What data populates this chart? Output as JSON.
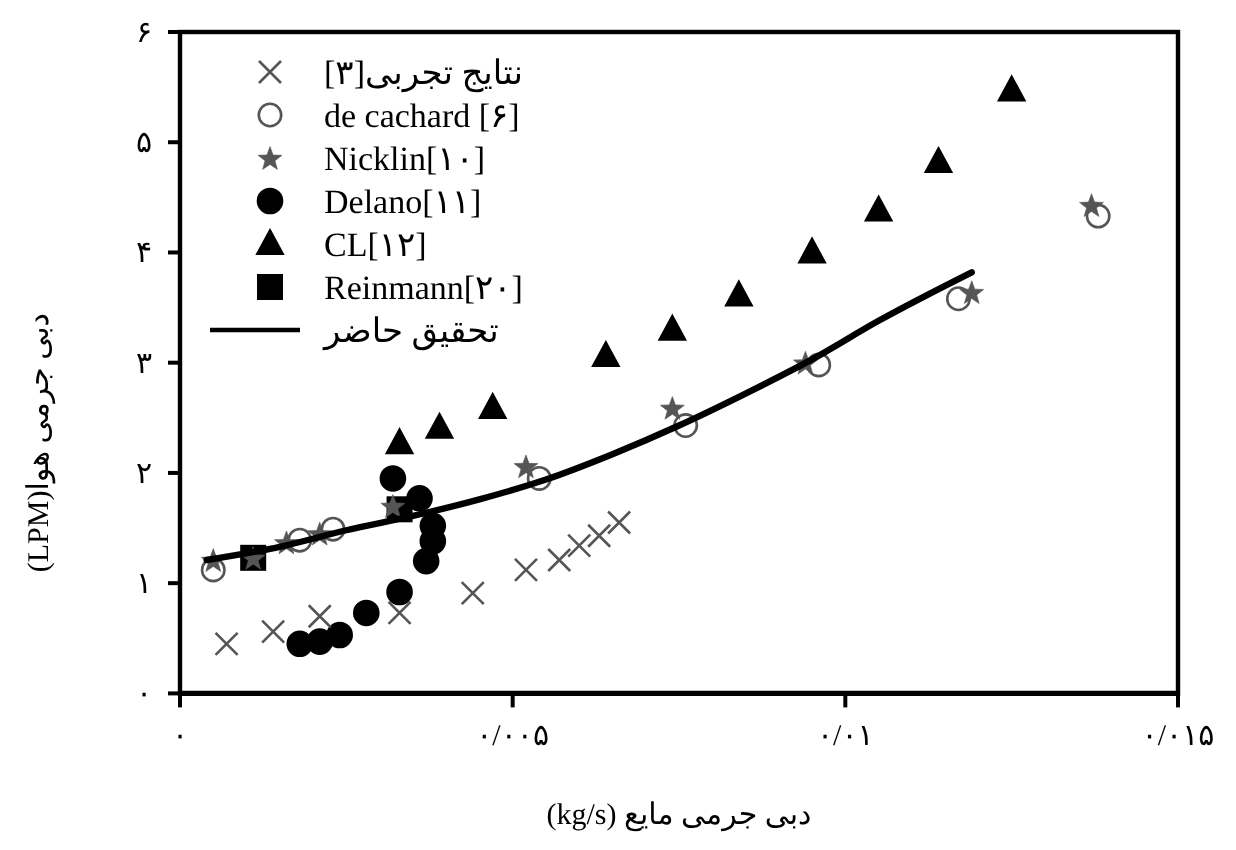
{
  "chart_data": {
    "type": "scatter",
    "xlabel": "دبی جرمی مایع (kg/s)",
    "ylabel": "دبی جرمی هوا(LPM)",
    "xlim": [
      0,
      0.015
    ],
    "xticks": [
      {
        "value": 0,
        "label": "۰"
      },
      {
        "value": 0.005,
        "label": "۰/۰۰۵"
      },
      {
        "value": 0.01,
        "label": "۰/۰۱"
      },
      {
        "value": 0.015,
        "label": "۰/۰۱۵"
      }
    ],
    "ylim": [
      0,
      6
    ],
    "yticks": [
      {
        "value": 0,
        "label": "۰"
      },
      {
        "value": 1,
        "label": "۱"
      },
      {
        "value": 2,
        "label": "۲"
      },
      {
        "value": 3,
        "label": "۳"
      },
      {
        "value": 4,
        "label": "۴"
      },
      {
        "value": 5,
        "label": "۵"
      },
      {
        "value": 6,
        "label": "۶"
      }
    ],
    "legend": "top left",
    "series": [
      {
        "name": "نتایج تجربی[۳]",
        "marker": "cross",
        "color": "#555555",
        "x": [
          0.0007,
          0.0014,
          0.0021,
          0.0033,
          0.0044,
          0.0052,
          0.0057,
          0.006,
          0.0063,
          0.0066
        ],
        "values": [
          0.45,
          0.56,
          0.7,
          0.73,
          0.91,
          1.12,
          1.21,
          1.34,
          1.43,
          1.55
        ]
      },
      {
        "name": "de cachard [۶]",
        "marker": "circle",
        "color": "#555555",
        "x": [
          0.0005,
          0.0018,
          0.0023,
          0.0054,
          0.0076,
          0.0096,
          0.0117,
          0.0138
        ],
        "values": [
          1.12,
          1.39,
          1.49,
          1.95,
          2.43,
          2.98,
          3.58,
          4.33
        ]
      },
      {
        "name": "Nicklin[۱۰]",
        "marker": "star",
        "color": "#555555",
        "x": [
          0.0005,
          0.0011,
          0.0016,
          0.0021,
          0.0032,
          0.0052,
          0.0074,
          0.0094,
          0.0119,
          0.0137
        ],
        "values": [
          1.21,
          1.23,
          1.37,
          1.45,
          1.7,
          2.06,
          2.59,
          3.0,
          3.64,
          4.43
        ]
      },
      {
        "name": "Delano[۱۱]",
        "marker": "circle",
        "color": "#000000",
        "x": [
          0.0018,
          0.0021,
          0.0024,
          0.0028,
          0.0033,
          0.0032,
          0.0036,
          0.0038,
          0.0038,
          0.0037
        ],
        "values": [
          0.45,
          0.47,
          0.53,
          0.73,
          0.92,
          1.95,
          1.77,
          1.52,
          1.38,
          1.2
        ]
      },
      {
        "name": "CL[۱۲]",
        "marker": "triangle",
        "color": "#000000",
        "x": [
          0.0033,
          0.0039,
          0.0047,
          0.0064,
          0.0074,
          0.0084,
          0.0095,
          0.0105,
          0.0114,
          0.0125
        ],
        "values": [
          2.27,
          2.41,
          2.59,
          3.06,
          3.3,
          3.61,
          4.0,
          4.38,
          4.82,
          5.47
        ]
      },
      {
        "name": "Reinmann[۲۰]",
        "marker": "square",
        "color": "#000000",
        "x": [
          0.0011,
          0.0033
        ],
        "values": [
          1.23,
          1.67
        ]
      },
      {
        "name": "تحقیق حاضر",
        "type": "line",
        "line_style": "solid",
        "color": "#000000",
        "x": [
          0.0004,
          0.0015,
          0.0025,
          0.0035,
          0.0045,
          0.0055,
          0.0065,
          0.0075,
          0.0085,
          0.0095,
          0.0105,
          0.0119
        ],
        "values": [
          1.21,
          1.33,
          1.48,
          1.61,
          1.76,
          1.94,
          2.17,
          2.43,
          2.72,
          3.03,
          3.38,
          3.82
        ]
      }
    ]
  }
}
